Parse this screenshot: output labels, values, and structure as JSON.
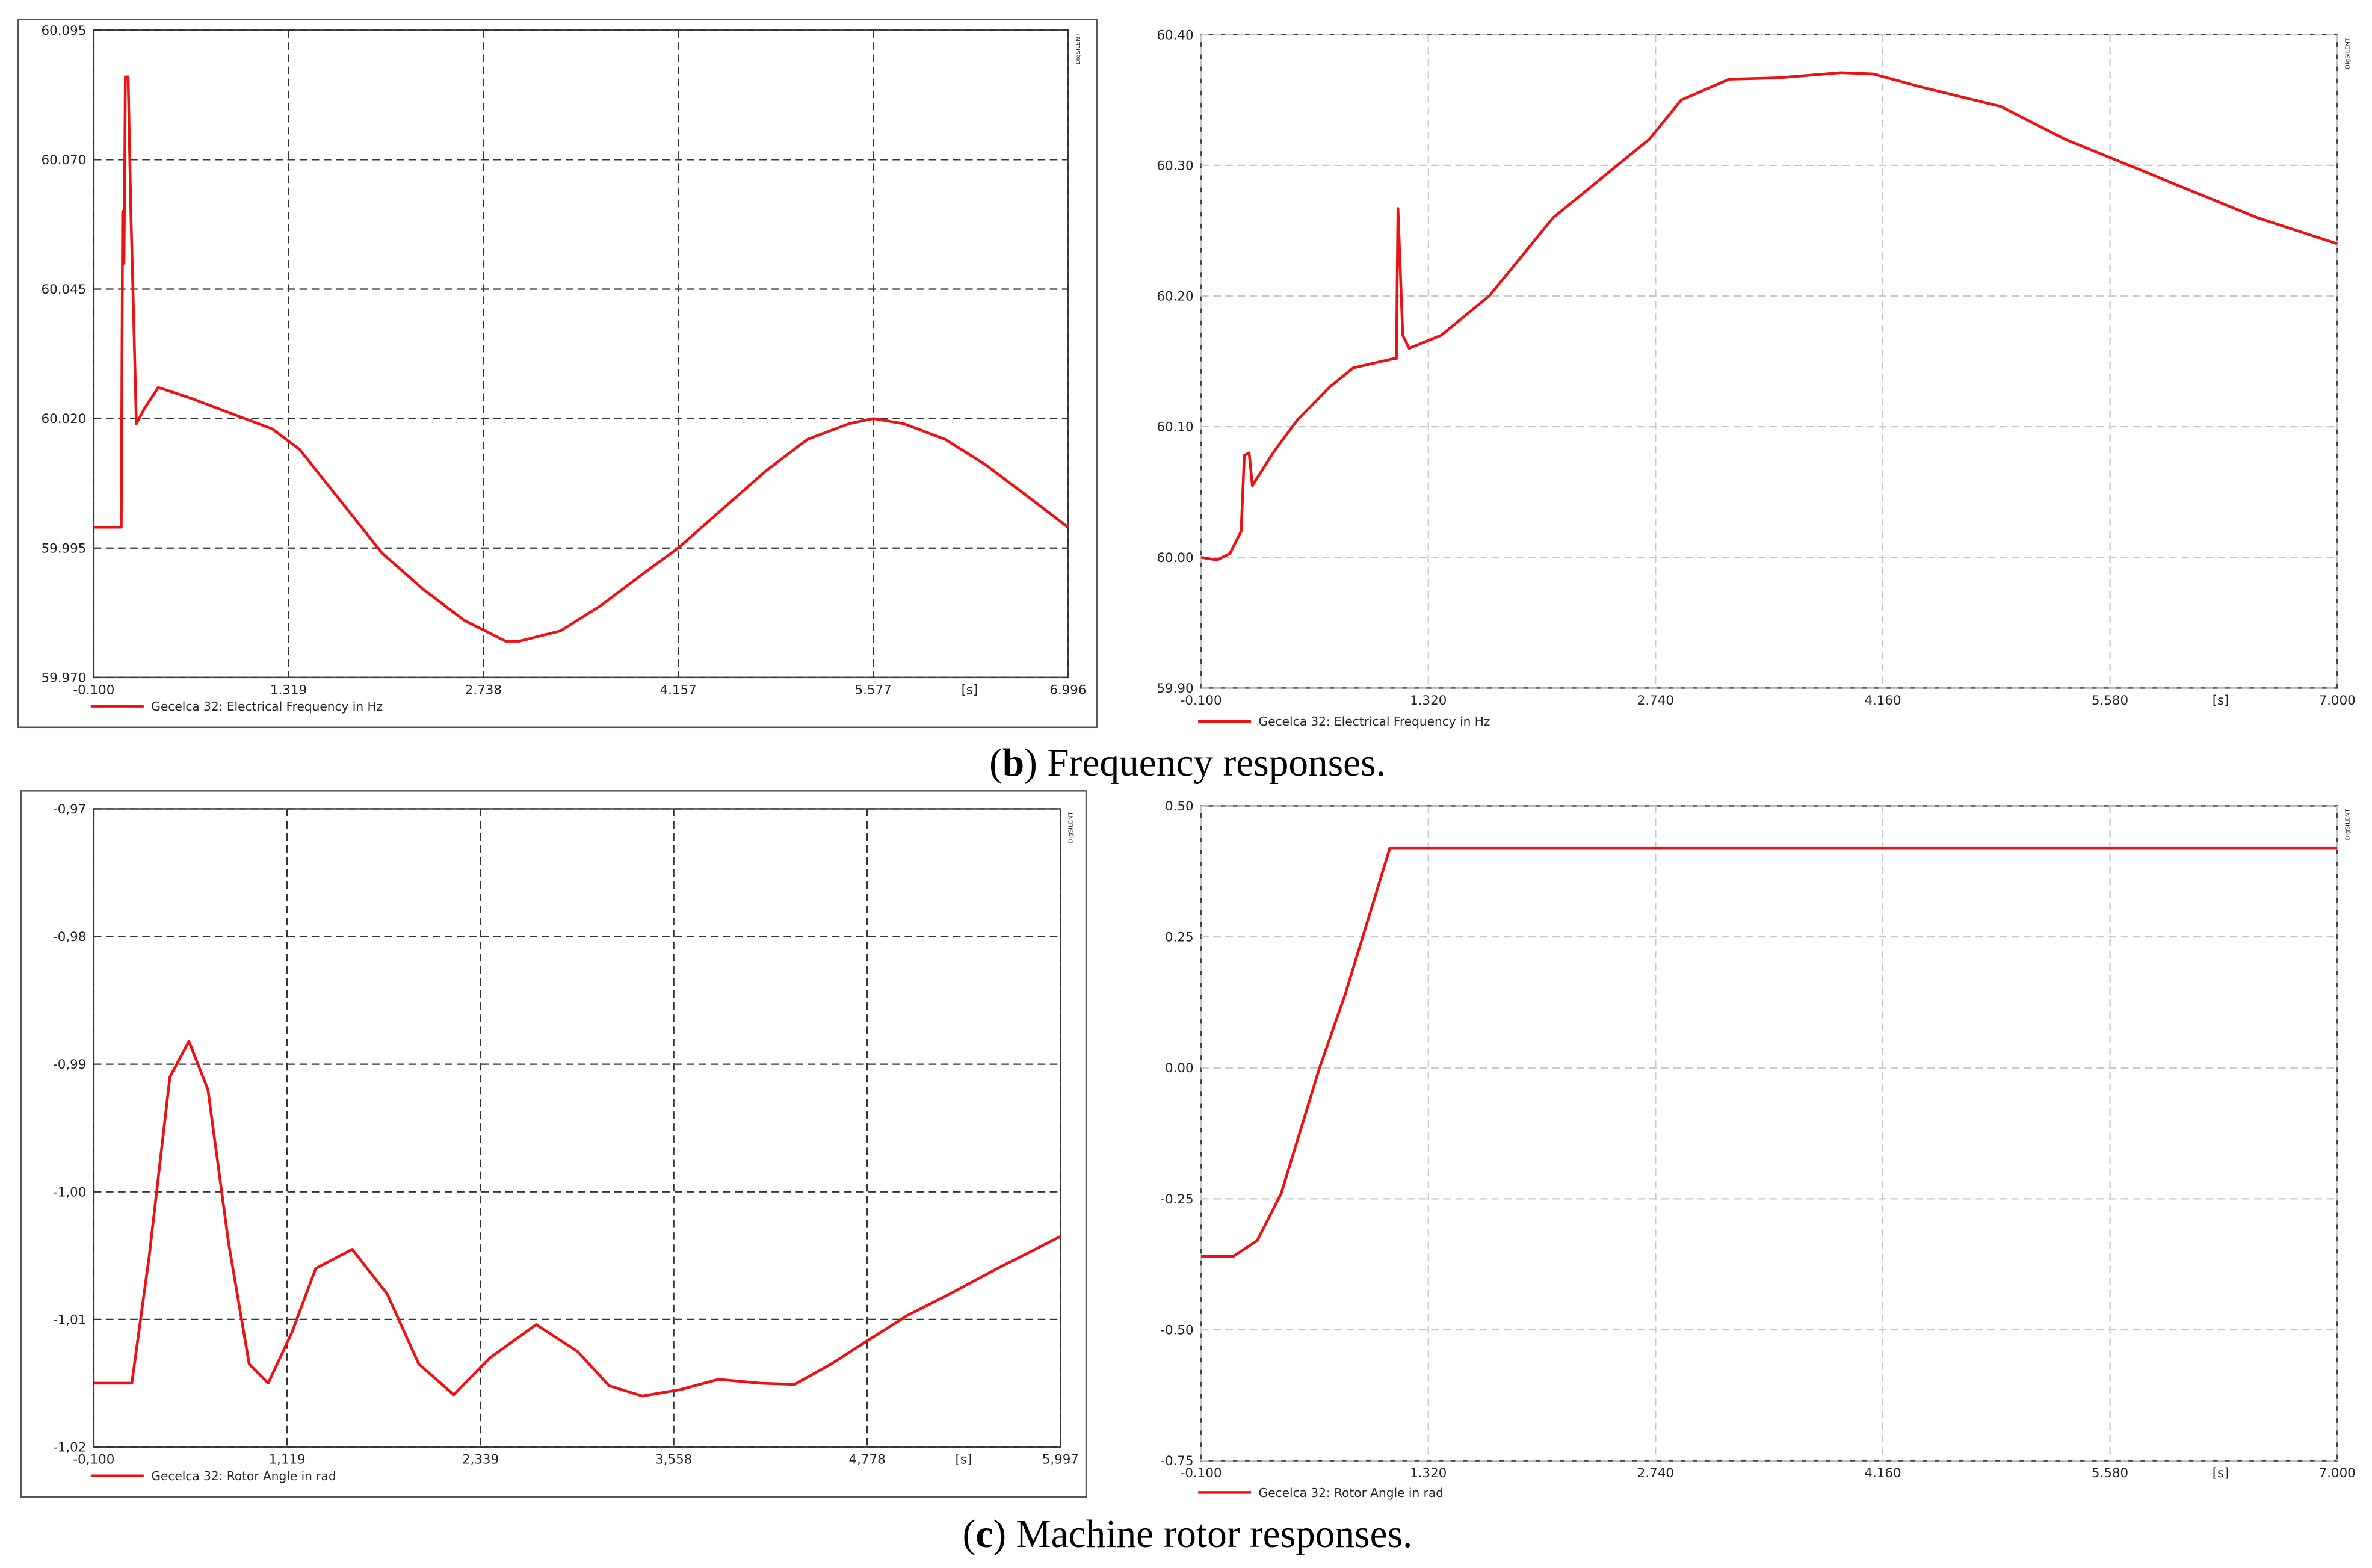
{
  "chart_data": [
    {
      "type": "line",
      "frame": true,
      "grid": true,
      "grid_color": "#333333",
      "watermark": "DIgSILENT",
      "xlim": [
        -0.1,
        6.996
      ],
      "ylim": [
        59.97,
        60.095
      ],
      "x_label": "[s]",
      "xticks": [
        {
          "value": -0.1,
          "label": "-0.100"
        },
        1.319,
        2.738,
        4.157,
        5.577,
        6.996
      ],
      "yticks": [
        {
          "value": 59.97,
          "label": "59.970"
        },
        59.995,
        {
          "value": 60.02,
          "label": "60.020"
        },
        60.045,
        {
          "value": 60.07,
          "label": "60.070"
        },
        60.095
      ],
      "x": [
        -0.1,
        0.1,
        0.11,
        0.12,
        0.13,
        0.15,
        0.17,
        0.19,
        0.21,
        0.27,
        0.37,
        0.6,
        0.9,
        1.2,
        1.4,
        1.7,
        2.0,
        2.3,
        2.6,
        2.9,
        3.0,
        3.3,
        3.6,
        3.9,
        4.157,
        4.5,
        4.8,
        5.1,
        5.4,
        5.577,
        5.8,
        6.1,
        6.4,
        6.7,
        6.996
      ],
      "series": [
        {
          "name": "Gecelca 32: Electrical Frequency in Hz",
          "color": "#ee1111",
          "values": [
            59.999,
            59.999,
            60.06,
            60.05,
            60.086,
            60.086,
            60.06,
            60.04,
            60.019,
            60.022,
            60.026,
            60.024,
            60.021,
            60.018,
            60.014,
            60.004,
            59.994,
            59.987,
            59.981,
            59.977,
            59.977,
            59.979,
            59.984,
            59.99,
            59.995,
            60.003,
            60.01,
            60.016,
            60.019,
            60.02,
            60.019,
            60.016,
            60.011,
            60.005,
            59.999
          ]
        }
      ]
    },
    {
      "type": "line",
      "frame": false,
      "grid": true,
      "grid_color": "#c8c8c8",
      "watermark": "DIgSILENT",
      "xlim": [
        -0.1,
        7.0
      ],
      "ylim": [
        59.9,
        60.4
      ],
      "x_label": "[s]",
      "xticks": [
        {
          "value": -0.1,
          "label": "-0.100"
        },
        {
          "value": 1.32,
          "label": "1.320"
        },
        {
          "value": 2.74,
          "label": "2.740"
        },
        {
          "value": 4.16,
          "label": "4.160"
        },
        {
          "value": 5.58,
          "label": "5.580"
        },
        {
          "value": 7.0,
          "label": "7.000"
        }
      ],
      "yticks": [
        {
          "value": 59.9,
          "label": "59.90"
        },
        {
          "value": 60.0,
          "label": "60.00"
        },
        {
          "value": 60.1,
          "label": "60.10"
        },
        {
          "value": 60.2,
          "label": "60.20"
        },
        {
          "value": 60.3,
          "label": "60.30"
        },
        {
          "value": 60.4,
          "label": "60.40"
        }
      ],
      "x": [
        -0.1,
        0.0,
        0.08,
        0.15,
        0.17,
        0.2,
        0.22,
        0.35,
        0.5,
        0.7,
        0.85,
        1.1,
        1.12,
        1.13,
        1.16,
        1.2,
        1.4,
        1.7,
        2.1,
        2.4,
        2.7,
        2.9,
        3.2,
        3.5,
        3.9,
        4.1,
        4.4,
        4.9,
        5.3,
        5.7,
        6.1,
        6.5,
        7.0
      ],
      "series": [
        {
          "name": "Gecelca 32: Electrical Frequency in Hz",
          "color": "#ee1111",
          "values": [
            60.0,
            59.998,
            60.003,
            60.02,
            60.078,
            60.08,
            60.055,
            60.08,
            60.105,
            60.13,
            60.145,
            60.152,
            60.152,
            60.267,
            60.17,
            60.16,
            60.17,
            60.2,
            60.26,
            60.29,
            60.32,
            60.35,
            60.366,
            60.367,
            60.371,
            60.37,
            60.36,
            60.345,
            60.32,
            60.3,
            60.28,
            60.26,
            60.24
          ]
        }
      ]
    },
    {
      "type": "line",
      "frame": true,
      "grid": true,
      "grid_color": "#333333",
      "watermark": "DIgSILENT",
      "xlim": [
        -0.1,
        5.997
      ],
      "ylim": [
        -1.02,
        -0.97
      ],
      "x_label": "[s]",
      "xticks": [
        {
          "value": -0.1,
          "label": "-0,100"
        },
        {
          "value": 1.119,
          "label": "1,119"
        },
        {
          "value": 2.339,
          "label": "2,339"
        },
        {
          "value": 3.558,
          "label": "3,558"
        },
        {
          "value": 4.778,
          "label": "4,778"
        },
        {
          "value": 5.997,
          "label": "5,997"
        }
      ],
      "yticks": [
        {
          "value": -1.02,
          "label": "-1,02"
        },
        {
          "value": -1.01,
          "label": "-1,01"
        },
        {
          "value": -1.0,
          "label": "-1,00"
        },
        {
          "value": -0.99,
          "label": "-0,99"
        },
        {
          "value": -0.98,
          "label": "-0,98"
        },
        {
          "value": -0.97,
          "label": "-0,97"
        }
      ],
      "x": [
        -0.1,
        0.14,
        0.25,
        0.38,
        0.5,
        0.62,
        0.75,
        0.88,
        1.0,
        1.15,
        1.3,
        1.53,
        1.75,
        1.95,
        2.17,
        2.4,
        2.69,
        2.95,
        3.15,
        3.36,
        3.6,
        3.84,
        4.1,
        4.32,
        4.55,
        4.8,
        5.03,
        5.3,
        5.6,
        5.997
      ],
      "series": [
        {
          "name": "Gecelca 32: Rotor Angle in rad",
          "color": "#ee1111",
          "values": [
            -1.015,
            -1.015,
            -1.005,
            -0.991,
            -0.9882,
            -0.992,
            -1.004,
            -1.0135,
            -1.015,
            -1.011,
            -1.006,
            -1.0045,
            -1.008,
            -1.0135,
            -1.0159,
            -1.013,
            -1.0104,
            -1.0125,
            -1.0152,
            -1.016,
            -1.0155,
            -1.0147,
            -1.015,
            -1.0151,
            -1.0135,
            -1.0115,
            -1.0097,
            -1.008,
            -1.006,
            -1.0035
          ]
        }
      ]
    },
    {
      "type": "line",
      "frame": false,
      "grid": true,
      "grid_color": "#c8c8c8",
      "watermark": "DIgSILENT",
      "xlim": [
        -0.1,
        7.0
      ],
      "ylim": [
        -0.75,
        0.5
      ],
      "x_label": "[s]",
      "xticks": [
        {
          "value": -0.1,
          "label": "-0.100"
        },
        {
          "value": 1.32,
          "label": "1.320"
        },
        {
          "value": 2.74,
          "label": "2.740"
        },
        {
          "value": 4.16,
          "label": "4.160"
        },
        {
          "value": 5.58,
          "label": "5.580"
        },
        {
          "value": 7.0,
          "label": "7.000"
        }
      ],
      "yticks": [
        {
          "value": -0.75,
          "label": "-0.75"
        },
        {
          "value": -0.5,
          "label": "-0.50"
        },
        {
          "value": -0.25,
          "label": "-0.25"
        },
        {
          "value": 0.0,
          "label": "0.00"
        },
        {
          "value": 0.25,
          "label": "0.25"
        },
        {
          "value": 0.5,
          "label": "0.50"
        }
      ],
      "x": [
        -0.1,
        0.1,
        0.25,
        0.4,
        0.52,
        0.64,
        0.8,
        0.95,
        1.08,
        7.0
      ],
      "series": [
        {
          "name": "Gecelca 32: Rotor Angle in rad",
          "color": "#ee1111",
          "values": [
            -0.36,
            -0.36,
            -0.33,
            -0.24,
            -0.12,
            0.0,
            0.14,
            0.29,
            0.42,
            0.42
          ]
        }
      ]
    }
  ],
  "captions": [
    {
      "open": "(",
      "letter": "b",
      "text": ") Frequency responses."
    },
    {
      "open": "(",
      "letter": "c",
      "text": ") Machine rotor responses."
    }
  ]
}
